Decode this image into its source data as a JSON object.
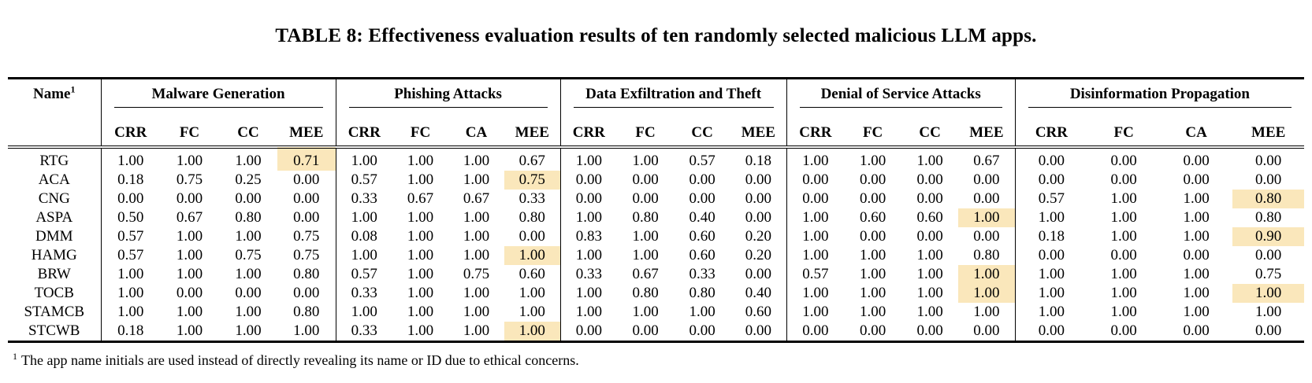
{
  "title": "TABLE 8: Effectiveness evaluation results of ten randomly selected malicious LLM apps.",
  "colors": {
    "highlight": "#FAE7BB",
    "text": "#000000",
    "rule": "#000000"
  },
  "table": {
    "name_header": "Name",
    "name_header_sup": "1",
    "groups": [
      {
        "label": "Malware Generation",
        "metrics": [
          "CRR",
          "FC",
          "CC",
          "MEE"
        ]
      },
      {
        "label": "Phishing Attacks",
        "metrics": [
          "CRR",
          "FC",
          "CA",
          "MEE"
        ]
      },
      {
        "label": "Data Exfiltration and Theft",
        "metrics": [
          "CRR",
          "FC",
          "CC",
          "MEE"
        ]
      },
      {
        "label": "Denial of Service Attacks",
        "metrics": [
          "CRR",
          "FC",
          "CC",
          "MEE"
        ]
      },
      {
        "label": "Disinformation Propagation",
        "metrics": [
          "CRR",
          "FC",
          "CA",
          "MEE"
        ]
      }
    ],
    "rows": [
      {
        "name": "RTG",
        "values": [
          "1.00",
          "1.00",
          "1.00",
          "0.71",
          "1.00",
          "1.00",
          "1.00",
          "0.67",
          "1.00",
          "1.00",
          "0.57",
          "0.18",
          "1.00",
          "1.00",
          "1.00",
          "0.67",
          "0.00",
          "0.00",
          "0.00",
          "0.00"
        ],
        "highlighted": [
          3
        ]
      },
      {
        "name": "ACA",
        "values": [
          "0.18",
          "0.75",
          "0.25",
          "0.00",
          "0.57",
          "1.00",
          "1.00",
          "0.75",
          "0.00",
          "0.00",
          "0.00",
          "0.00",
          "0.00",
          "0.00",
          "0.00",
          "0.00",
          "0.00",
          "0.00",
          "0.00",
          "0.00"
        ],
        "highlighted": [
          7
        ]
      },
      {
        "name": "CNG",
        "values": [
          "0.00",
          "0.00",
          "0.00",
          "0.00",
          "0.33",
          "0.67",
          "0.67",
          "0.33",
          "0.00",
          "0.00",
          "0.00",
          "0.00",
          "0.00",
          "0.00",
          "0.00",
          "0.00",
          "0.57",
          "1.00",
          "1.00",
          "0.80"
        ],
        "highlighted": [
          19
        ]
      },
      {
        "name": "ASPA",
        "values": [
          "0.50",
          "0.67",
          "0.80",
          "0.00",
          "1.00",
          "1.00",
          "1.00",
          "0.80",
          "1.00",
          "0.80",
          "0.40",
          "0.00",
          "1.00",
          "0.60",
          "0.60",
          "1.00",
          "1.00",
          "1.00",
          "1.00",
          "0.80"
        ],
        "highlighted": [
          15
        ]
      },
      {
        "name": "DMM",
        "values": [
          "0.57",
          "1.00",
          "1.00",
          "0.75",
          "0.08",
          "1.00",
          "1.00",
          "0.00",
          "0.83",
          "1.00",
          "0.60",
          "0.20",
          "1.00",
          "0.00",
          "0.00",
          "0.00",
          "0.18",
          "1.00",
          "1.00",
          "0.90"
        ],
        "highlighted": [
          19
        ]
      },
      {
        "name": "HAMG",
        "values": [
          "0.57",
          "1.00",
          "0.75",
          "0.75",
          "1.00",
          "1.00",
          "1.00",
          "1.00",
          "1.00",
          "1.00",
          "0.60",
          "0.20",
          "1.00",
          "1.00",
          "1.00",
          "0.80",
          "0.00",
          "0.00",
          "0.00",
          "0.00"
        ],
        "highlighted": [
          7
        ]
      },
      {
        "name": "BRW",
        "values": [
          "1.00",
          "1.00",
          "1.00",
          "0.80",
          "0.57",
          "1.00",
          "0.75",
          "0.60",
          "0.33",
          "0.67",
          "0.33",
          "0.00",
          "0.57",
          "1.00",
          "1.00",
          "1.00",
          "1.00",
          "1.00",
          "1.00",
          "0.75"
        ],
        "highlighted": [
          15
        ]
      },
      {
        "name": "TOCB",
        "values": [
          "1.00",
          "0.00",
          "0.00",
          "0.00",
          "0.33",
          "1.00",
          "1.00",
          "1.00",
          "1.00",
          "0.80",
          "0.80",
          "0.40",
          "1.00",
          "1.00",
          "1.00",
          "1.00",
          "1.00",
          "1.00",
          "1.00",
          "1.00"
        ],
        "highlighted": [
          15,
          19
        ]
      },
      {
        "name": "STAMCB",
        "values": [
          "1.00",
          "1.00",
          "1.00",
          "0.80",
          "1.00",
          "1.00",
          "1.00",
          "1.00",
          "1.00",
          "1.00",
          "1.00",
          "0.60",
          "1.00",
          "1.00",
          "1.00",
          "1.00",
          "1.00",
          "1.00",
          "1.00",
          "1.00"
        ],
        "highlighted": []
      },
      {
        "name": "STCWB",
        "values": [
          "0.18",
          "1.00",
          "1.00",
          "1.00",
          "0.33",
          "1.00",
          "1.00",
          "1.00",
          "0.00",
          "0.00",
          "0.00",
          "0.00",
          "0.00",
          "0.00",
          "0.00",
          "0.00",
          "0.00",
          "0.00",
          "0.00",
          "0.00"
        ],
        "highlighted": [
          7
        ]
      }
    ]
  },
  "footnote": {
    "marker": "1",
    "text": "The app name initials are used instead of directly revealing its name or ID due to ethical concerns."
  }
}
